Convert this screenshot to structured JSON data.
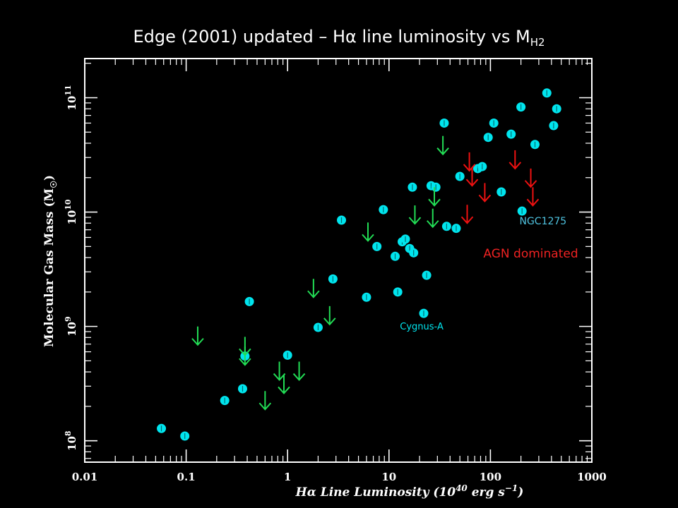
{
  "slide": {
    "title_prefix": "Edge (2001) updated – H",
    "title_symbol": "α",
    "title_middle": " line luminosity vs M",
    "title_subscript": "H2"
  },
  "colors": {
    "background": "#000000",
    "axes": "#ffffff",
    "detection": "#00e5ee",
    "limit_green": "#22dd55",
    "limit_red": "#ee1111",
    "ngc_label": "#4fc3e0",
    "agn_label": "#ee2222"
  },
  "chart_data": {
    "type": "scatter",
    "xscale": "log",
    "yscale": "log",
    "xlim": [
      0.01,
      1000
    ],
    "ylim": [
      65000000.0,
      220000000000.0
    ],
    "xlabel": "Hα Line Luminosity (10^40 erg s^-1)",
    "ylabel": "Molecular Gas Mass (M_☉)",
    "x_ticks": [
      {
        "value": 0.01,
        "label": "0.01"
      },
      {
        "value": 0.1,
        "label": "0.1"
      },
      {
        "value": 1,
        "label": "1"
      },
      {
        "value": 10,
        "label": "10"
      },
      {
        "value": 100,
        "label": "100"
      },
      {
        "value": 1000,
        "label": "1000"
      }
    ],
    "y_ticks": [
      {
        "value": 100000000.0,
        "base": "10",
        "exp": "8"
      },
      {
        "value": 1000000000.0,
        "base": "10",
        "exp": "9"
      },
      {
        "value": 10000000000.0,
        "base": "10",
        "exp": "10"
      },
      {
        "value": 100000000000.0,
        "base": "10",
        "exp": "11"
      }
    ],
    "series": [
      {
        "kind": "detections",
        "marker": "circle",
        "points": [
          {
            "x": 0.057,
            "y": 128000000.0
          },
          {
            "x": 0.097,
            "y": 110000000.0
          },
          {
            "x": 0.24,
            "y": 225000000.0
          },
          {
            "x": 0.36,
            "y": 285000000.0
          },
          {
            "x": 0.38,
            "y": 550000000.0
          },
          {
            "x": 0.42,
            "y": 1650000000.0
          },
          {
            "x": 1.0,
            "y": 560000000.0
          },
          {
            "x": 2.0,
            "y": 980000000.0
          },
          {
            "x": 2.8,
            "y": 2600000000.0
          },
          {
            "x": 3.4,
            "y": 8500000000.0
          },
          {
            "x": 6.0,
            "y": 1800000000.0
          },
          {
            "x": 7.6,
            "y": 5000000000.0
          },
          {
            "x": 8.8,
            "y": 10500000000.0
          },
          {
            "x": 11.5,
            "y": 4100000000.0
          },
          {
            "x": 12.2,
            "y": 2000000000.0
          },
          {
            "x": 13.5,
            "y": 5500000000.0
          },
          {
            "x": 14.5,
            "y": 5800000000.0
          },
          {
            "x": 16.0,
            "y": 4800000000.0
          },
          {
            "x": 17.5,
            "y": 4400000000.0
          },
          {
            "x": 17.0,
            "y": 16500000000.0
          },
          {
            "x": 22.0,
            "y": 1300000000.0
          },
          {
            "x": 23.5,
            "y": 2800000000.0
          },
          {
            "x": 26.0,
            "y": 17000000000.0
          },
          {
            "x": 29.0,
            "y": 16500000000.0
          },
          {
            "x": 35.0,
            "y": 60000000000.0
          },
          {
            "x": 37.0,
            "y": 7500000000.0
          },
          {
            "x": 46.0,
            "y": 7200000000.0
          },
          {
            "x": 50.0,
            "y": 20500000000.0
          },
          {
            "x": 75.0,
            "y": 24000000000.0
          },
          {
            "x": 83.0,
            "y": 25000000000.0
          },
          {
            "x": 95.0,
            "y": 45000000000.0
          },
          {
            "x": 108.0,
            "y": 60000000000.0
          },
          {
            "x": 128.0,
            "y": 15000000000.0
          },
          {
            "x": 160.0,
            "y": 48000000000.0
          },
          {
            "x": 200.0,
            "y": 83000000000.0
          },
          {
            "x": 205.0,
            "y": 10200000000.0
          },
          {
            "x": 275.0,
            "y": 39000000000.0
          },
          {
            "x": 360.0,
            "y": 110000000000.0
          },
          {
            "x": 420.0,
            "y": 57000000000.0
          },
          {
            "x": 450.0,
            "y": 80000000000.0
          }
        ]
      },
      {
        "kind": "upper-limits",
        "marker": "arrow",
        "color_key": "limit_green",
        "points": [
          {
            "x": 0.13,
            "y": 690000000.0
          },
          {
            "x": 0.38,
            "y": 560000000.0
          },
          {
            "x": 0.38,
            "y": 460000000.0
          },
          {
            "x": 0.6,
            "y": 188000000.0
          },
          {
            "x": 0.83,
            "y": 340000000.0
          },
          {
            "x": 0.92,
            "y": 260000000.0
          },
          {
            "x": 1.3,
            "y": 340000000.0
          },
          {
            "x": 1.8,
            "y": 1800000000.0
          },
          {
            "x": 2.6,
            "y": 1040000000.0
          },
          {
            "x": 6.2,
            "y": 5600000000.0
          },
          {
            "x": 18.0,
            "y": 7900000000.0
          },
          {
            "x": 27.0,
            "y": 7400000000.0
          },
          {
            "x": 28.0,
            "y": 11400000000.0
          },
          {
            "x": 34.0,
            "y": 32000000000.0
          }
        ]
      },
      {
        "kind": "upper-limits",
        "marker": "arrow",
        "color_key": "limit_red",
        "points": [
          {
            "x": 59.0,
            "y": 8000000000.0
          },
          {
            "x": 62.0,
            "y": 23000000000.0
          },
          {
            "x": 66.0,
            "y": 17000000000.0
          },
          {
            "x": 88.0,
            "y": 12400000000.0
          },
          {
            "x": 175.0,
            "y": 24000000000.0
          },
          {
            "x": 250.0,
            "y": 16600000000.0
          },
          {
            "x": 262.0,
            "y": 11400000000.0
          }
        ]
      }
    ],
    "annotations": [
      {
        "text": "Cygnus-A",
        "x": 21.0,
        "y": 940000000.0,
        "color_key": "detection",
        "size": 13
      },
      {
        "text": "NGC1275",
        "x": 330.0,
        "y": 7800000000.0,
        "color_key": "ngc_label",
        "size": 14
      },
      {
        "text": "AGN dominated",
        "x": 250.0,
        "y": 4000000000.0,
        "color_key": "agn_label",
        "size": 17
      }
    ]
  }
}
